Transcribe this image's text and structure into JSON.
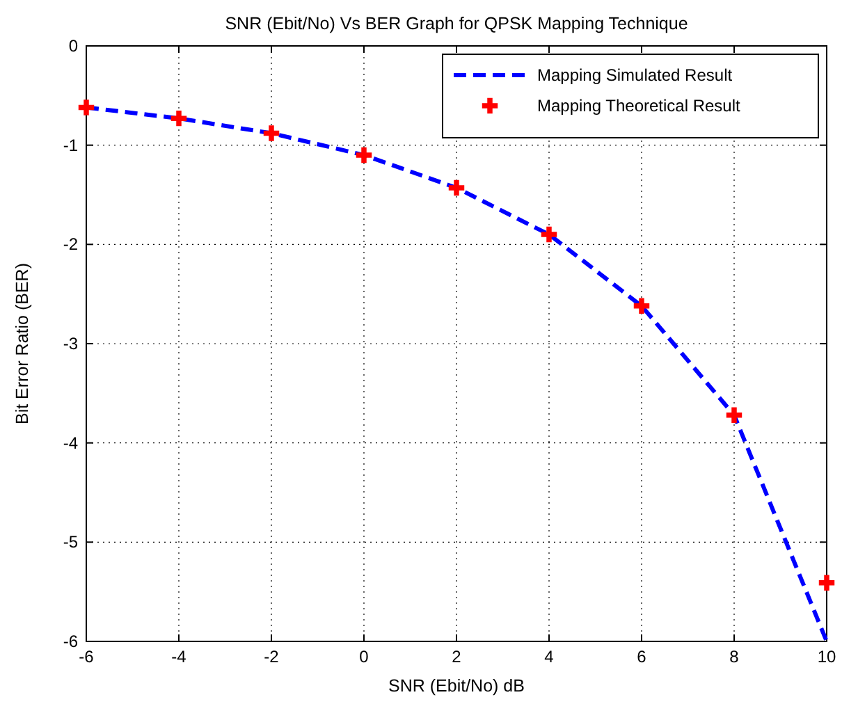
{
  "chart_data": {
    "type": "line",
    "title": "SNR (Ebit/No) Vs BER Graph for QPSK Mapping Technique",
    "xlabel": "SNR (Ebit/No) dB",
    "ylabel": "Bit Error Ratio (BER)",
    "x": [
      -6,
      -4,
      -2,
      0,
      2,
      4,
      6,
      8,
      10
    ],
    "series": [
      {
        "name": "Mapping Simulated Result",
        "color": "#0000ff",
        "line_style": "dashed",
        "marker": "none",
        "values": [
          -0.62,
          -0.73,
          -0.88,
          -1.1,
          -1.43,
          -1.9,
          -2.62,
          -3.72,
          -6.0
        ]
      },
      {
        "name": "Mapping Theoretical Result",
        "type": "scatter",
        "color": "#ff0000",
        "marker": "cross",
        "values": [
          -0.62,
          -0.73,
          -0.88,
          -1.1,
          -1.43,
          -1.9,
          -2.62,
          -3.72,
          -5.41
        ]
      }
    ],
    "xlim": [
      -6,
      10
    ],
    "xticks": [
      -6,
      -4,
      -2,
      0,
      2,
      4,
      6,
      8,
      10
    ],
    "ylim": [
      -6,
      0
    ],
    "yticks": [
      -6,
      -5,
      -4,
      -3,
      -2,
      -1,
      0
    ],
    "grid": true,
    "legend": "top right"
  }
}
